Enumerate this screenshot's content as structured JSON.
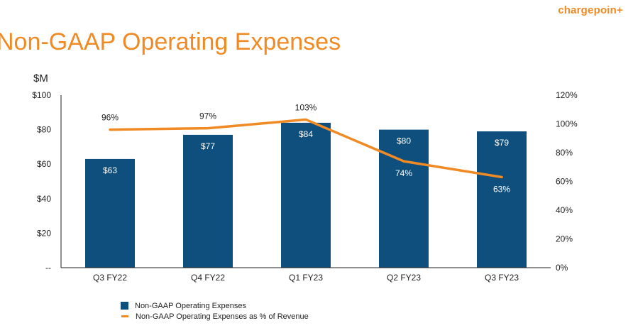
{
  "brand": {
    "logo": "chargepoin+",
    "logo_color": "#F08A24"
  },
  "slide": {
    "title": "Non-GAAP Operating Expenses"
  },
  "chart_data": {
    "type": "bar",
    "title": "Non-GAAP Operating Expenses",
    "ylabel": "$M",
    "categories": [
      "Q3 FY22",
      "Q4 FY22",
      "Q1 FY23",
      "Q2 FY23",
      "Q3 FY23"
    ],
    "series": [
      {
        "name": "Non-GAAP Operating Expenses",
        "type": "bar",
        "axis": "left",
        "color": "#0E4F7E",
        "values": [
          63,
          77,
          84,
          80,
          79
        ],
        "labels": [
          "$63",
          "$77",
          "$84",
          "$80",
          "$79"
        ]
      },
      {
        "name": "Non-GAAP Operating Expenses as % of Revenue",
        "type": "line",
        "axis": "right",
        "color": "#F08A24",
        "values": [
          96,
          97,
          103,
          74,
          63
        ],
        "labels": [
          "96%",
          "97%",
          "103%",
          "74%",
          "63%"
        ]
      }
    ],
    "left_axis": {
      "range": [
        0,
        100
      ],
      "ticks": [
        0,
        20,
        40,
        60,
        80,
        100
      ],
      "tick_labels": [
        "--",
        "$20",
        "$40",
        "$60",
        "$80",
        "$100"
      ]
    },
    "right_axis": {
      "range": [
        0,
        120
      ],
      "ticks": [
        0,
        20,
        40,
        60,
        80,
        100,
        120
      ],
      "tick_labels": [
        "0%",
        "20%",
        "40%",
        "60%",
        "80%",
        "100%",
        "120%"
      ]
    },
    "grid": false,
    "legend_position": "bottom"
  }
}
